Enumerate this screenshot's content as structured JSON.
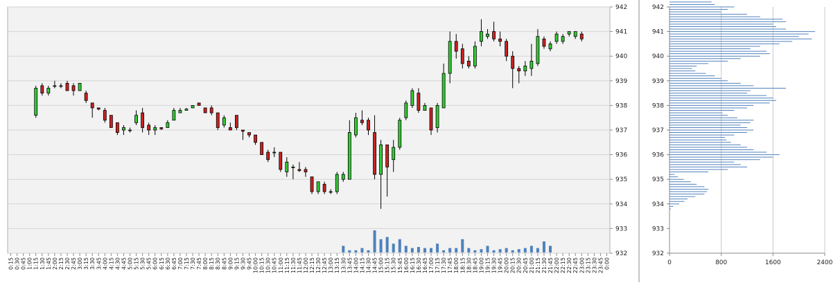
{
  "chart_data": [
    {
      "type": "candlestick",
      "title": "",
      "x_categories": [
        "0:15",
        "0:30",
        "0:45",
        "1:00",
        "1:15",
        "1:30",
        "1:45",
        "2:00",
        "2:15",
        "2:30",
        "2:45",
        "3:00",
        "3:15",
        "3:30",
        "3:45",
        "4:00",
        "4:15",
        "4:30",
        "4:45",
        "5:00",
        "5:15",
        "5:30",
        "5:45",
        "6:00",
        "6:15",
        "6:30",
        "6:45",
        "7:00",
        "7:15",
        "7:30",
        "7:45",
        "8:00",
        "8:15",
        "8:30",
        "8:45",
        "9:00",
        "9:15",
        "9:30",
        "9:45",
        "10:00",
        "10:15",
        "10:30",
        "10:45",
        "11:00",
        "11:15",
        "11:30",
        "11:45",
        "12:00",
        "12:15",
        "12:30",
        "12:45",
        "13:00",
        "13:15",
        "13:30",
        "13:45",
        "14:00",
        "14:15",
        "14:30",
        "14:45",
        "15:00",
        "15:15",
        "15:30",
        "15:45",
        "16:00",
        "16:15",
        "16:30",
        "16:45",
        "17:00",
        "17:15",
        "17:30",
        "17:45",
        "18:00",
        "18:15",
        "18:30",
        "18:45",
        "19:00",
        "19:15",
        "19:30",
        "19:45",
        "20:00",
        "20:15",
        "20:30",
        "20:45",
        "21:00",
        "21:15",
        "21:30",
        "21:45",
        "22:00",
        "22:15",
        "22:30",
        "22:45",
        "23:00",
        "23:15",
        "23:30",
        "23:45",
        "0:00"
      ],
      "y_ticks": [
        "942",
        "941",
        "940",
        "939",
        "938",
        "937",
        "936",
        "935",
        "934",
        "933",
        "932"
      ],
      "ylim": [
        932,
        942
      ],
      "bull_color": "#33cc33",
      "bear_color": "#cc2222",
      "volume_color": "#4f81bd",
      "candles": [
        {
          "x": "1:15",
          "o": 937.6,
          "h": 938.8,
          "l": 937.5,
          "c": 938.7
        },
        {
          "x": "1:30",
          "o": 938.8,
          "h": 938.9,
          "l": 938.4,
          "c": 938.5
        },
        {
          "x": "1:45",
          "o": 938.5,
          "h": 938.8,
          "l": 938.4,
          "c": 938.7
        },
        {
          "x": "2:00",
          "o": 938.8,
          "h": 939.0,
          "l": 938.7,
          "c": 938.8
        },
        {
          "x": "2:15",
          "o": 938.8,
          "h": 938.9,
          "l": 938.7,
          "c": 938.8
        },
        {
          "x": "2:30",
          "o": 938.9,
          "h": 939.0,
          "l": 938.6,
          "c": 938.6
        },
        {
          "x": "2:45",
          "o": 938.8,
          "h": 938.9,
          "l": 938.4,
          "c": 938.6
        },
        {
          "x": "3:00",
          "o": 938.6,
          "h": 938.9,
          "l": 938.6,
          "c": 938.9
        },
        {
          "x": "3:15",
          "o": 938.5,
          "h": 938.6,
          "l": 938.1,
          "c": 938.2
        },
        {
          "x": "3:30",
          "o": 938.1,
          "h": 938.1,
          "l": 937.5,
          "c": 937.9
        },
        {
          "x": "3:45",
          "o": 937.9,
          "h": 937.9,
          "l": 937.8,
          "c": 937.85
        },
        {
          "x": "4:00",
          "o": 937.8,
          "h": 937.9,
          "l": 937.3,
          "c": 937.4
        },
        {
          "x": "4:15",
          "o": 937.6,
          "h": 937.6,
          "l": 937.1,
          "c": 937.1
        },
        {
          "x": "4:30",
          "o": 937.3,
          "h": 937.3,
          "l": 936.8,
          "c": 936.9
        },
        {
          "x": "4:45",
          "o": 937.0,
          "h": 937.2,
          "l": 936.8,
          "c": 937.1
        },
        {
          "x": "5:00",
          "o": 937.0,
          "h": 937.1,
          "l": 936.9,
          "c": 937.0
        },
        {
          "x": "5:15",
          "o": 937.3,
          "h": 937.8,
          "l": 937.2,
          "c": 937.6
        },
        {
          "x": "5:30",
          "o": 937.7,
          "h": 937.9,
          "l": 936.9,
          "c": 937.1
        },
        {
          "x": "5:45",
          "o": 937.2,
          "h": 937.3,
          "l": 936.8,
          "c": 937.0
        },
        {
          "x": "6:00",
          "o": 937.0,
          "h": 937.2,
          "l": 936.8,
          "c": 937.1
        },
        {
          "x": "6:15",
          "o": 937.1,
          "h": 937.1,
          "l": 937.0,
          "c": 937.05
        },
        {
          "x": "6:30",
          "o": 937.1,
          "h": 937.4,
          "l": 937.1,
          "c": 937.3
        },
        {
          "x": "6:45",
          "o": 937.4,
          "h": 937.9,
          "l": 937.4,
          "c": 937.8
        },
        {
          "x": "7:00",
          "o": 937.7,
          "h": 937.9,
          "l": 937.7,
          "c": 937.8
        },
        {
          "x": "7:15",
          "o": 937.8,
          "h": 937.9,
          "l": 937.8,
          "c": 937.85
        },
        {
          "x": "7:30",
          "o": 937.9,
          "h": 938.0,
          "l": 937.9,
          "c": 938.0
        },
        {
          "x": "7:45",
          "o": 938.1,
          "h": 938.1,
          "l": 938.0,
          "c": 938.0
        },
        {
          "x": "8:00",
          "o": 937.9,
          "h": 937.9,
          "l": 937.7,
          "c": 937.7
        },
        {
          "x": "8:15",
          "o": 937.9,
          "h": 938.0,
          "l": 937.6,
          "c": 937.7
        },
        {
          "x": "8:30",
          "o": 937.7,
          "h": 937.7,
          "l": 937.0,
          "c": 937.1
        },
        {
          "x": "8:45",
          "o": 937.2,
          "h": 937.6,
          "l": 937.1,
          "c": 937.5
        },
        {
          "x": "9:00",
          "o": 937.1,
          "h": 937.3,
          "l": 937.0,
          "c": 937.0
        },
        {
          "x": "9:15",
          "o": 937.6,
          "h": 937.6,
          "l": 937.0,
          "c": 937.1
        },
        {
          "x": "9:30",
          "o": 937.0,
          "h": 937.0,
          "l": 936.6,
          "c": 936.95
        },
        {
          "x": "9:45",
          "o": 936.9,
          "h": 936.9,
          "l": 936.7,
          "c": 936.8
        },
        {
          "x": "10:00",
          "o": 936.8,
          "h": 936.8,
          "l": 936.4,
          "c": 936.5
        },
        {
          "x": "10:15",
          "o": 936.5,
          "h": 936.5,
          "l": 936.0,
          "c": 936.0
        },
        {
          "x": "10:30",
          "o": 936.1,
          "h": 936.2,
          "l": 935.7,
          "c": 935.8
        },
        {
          "x": "10:45",
          "o": 936.1,
          "h": 936.3,
          "l": 935.9,
          "c": 936.1
        },
        {
          "x": "11:00",
          "o": 936.1,
          "h": 936.1,
          "l": 935.3,
          "c": 935.4
        },
        {
          "x": "11:15",
          "o": 935.3,
          "h": 935.9,
          "l": 935.1,
          "c": 935.7
        },
        {
          "x": "11:30",
          "o": 935.5,
          "h": 935.6,
          "l": 935.0,
          "c": 935.5
        },
        {
          "x": "11:45",
          "o": 935.4,
          "h": 935.7,
          "l": 935.3,
          "c": 935.35
        },
        {
          "x": "12:00",
          "o": 935.4,
          "h": 935.5,
          "l": 935.1,
          "c": 935.3
        },
        {
          "x": "12:15",
          "o": 935.1,
          "h": 935.1,
          "l": 934.4,
          "c": 934.5
        },
        {
          "x": "12:30",
          "o": 934.5,
          "h": 934.9,
          "l": 934.4,
          "c": 934.9
        },
        {
          "x": "12:45",
          "o": 934.8,
          "h": 934.9,
          "l": 934.4,
          "c": 934.5
        },
        {
          "x": "13:00",
          "o": 934.5,
          "h": 934.6,
          "l": 934.4,
          "c": 934.5
        },
        {
          "x": "13:15",
          "o": 934.5,
          "h": 935.3,
          "l": 934.4,
          "c": 935.2
        },
        {
          "x": "13:30",
          "o": 935.0,
          "h": 935.3,
          "l": 934.9,
          "c": 935.2
        },
        {
          "x": "13:45",
          "o": 935.0,
          "h": 937.4,
          "l": 935.0,
          "c": 936.9
        },
        {
          "x": "14:00",
          "o": 936.8,
          "h": 937.7,
          "l": 936.7,
          "c": 937.5
        },
        {
          "x": "14:15",
          "o": 937.4,
          "h": 937.8,
          "l": 937.2,
          "c": 937.3
        },
        {
          "x": "14:30",
          "o": 937.4,
          "h": 937.5,
          "l": 936.8,
          "c": 937.0
        },
        {
          "x": "14:45",
          "o": 936.9,
          "h": 937.6,
          "l": 935.0,
          "c": 935.2
        },
        {
          "x": "15:00",
          "o": 935.2,
          "h": 936.6,
          "l": 933.8,
          "c": 936.4
        },
        {
          "x": "15:15",
          "o": 936.4,
          "h": 936.4,
          "l": 934.3,
          "c": 935.5
        },
        {
          "x": "15:30",
          "o": 935.8,
          "h": 936.6,
          "l": 935.3,
          "c": 936.3
        },
        {
          "x": "15:45",
          "o": 936.3,
          "h": 937.5,
          "l": 936.2,
          "c": 937.4
        },
        {
          "x": "16:00",
          "o": 937.5,
          "h": 938.2,
          "l": 937.4,
          "c": 938.1
        },
        {
          "x": "16:15",
          "o": 938.0,
          "h": 938.7,
          "l": 937.9,
          "c": 938.6
        },
        {
          "x": "16:30",
          "o": 938.5,
          "h": 938.7,
          "l": 937.7,
          "c": 937.8
        },
        {
          "x": "16:45",
          "o": 937.8,
          "h": 938.1,
          "l": 937.8,
          "c": 938.0
        },
        {
          "x": "17:00",
          "o": 937.9,
          "h": 937.9,
          "l": 936.8,
          "c": 937.0
        },
        {
          "x": "17:15",
          "o": 937.1,
          "h": 938.1,
          "l": 936.9,
          "c": 938.0
        },
        {
          "x": "17:30",
          "o": 937.9,
          "h": 939.7,
          "l": 937.9,
          "c": 939.3
        },
        {
          "x": "17:45",
          "o": 939.3,
          "h": 941.0,
          "l": 938.9,
          "c": 940.6
        },
        {
          "x": "18:00",
          "o": 940.6,
          "h": 940.9,
          "l": 939.9,
          "c": 940.2
        },
        {
          "x": "18:15",
          "o": 940.3,
          "h": 940.5,
          "l": 939.5,
          "c": 939.7
        },
        {
          "x": "18:30",
          "o": 939.8,
          "h": 940.0,
          "l": 939.5,
          "c": 939.6
        },
        {
          "x": "18:45",
          "o": 939.6,
          "h": 940.6,
          "l": 939.5,
          "c": 940.4
        },
        {
          "x": "19:00",
          "o": 940.6,
          "h": 941.5,
          "l": 940.4,
          "c": 941.0
        },
        {
          "x": "19:15",
          "o": 940.8,
          "h": 941.1,
          "l": 940.7,
          "c": 940.9
        },
        {
          "x": "19:30",
          "o": 941.0,
          "h": 941.4,
          "l": 940.6,
          "c": 940.7
        },
        {
          "x": "19:45",
          "o": 940.7,
          "h": 941.0,
          "l": 940.4,
          "c": 940.6
        },
        {
          "x": "20:00",
          "o": 940.6,
          "h": 940.7,
          "l": 939.8,
          "c": 940.0
        },
        {
          "x": "20:15",
          "o": 940.0,
          "h": 940.2,
          "l": 938.7,
          "c": 939.5
        },
        {
          "x": "20:30",
          "o": 939.5,
          "h": 939.6,
          "l": 938.9,
          "c": 939.4
        },
        {
          "x": "20:45",
          "o": 939.4,
          "h": 939.8,
          "l": 939.2,
          "c": 939.6
        },
        {
          "x": "21:00",
          "o": 939.5,
          "h": 940.5,
          "l": 939.2,
          "c": 939.8
        },
        {
          "x": "21:15",
          "o": 939.7,
          "h": 941.1,
          "l": 939.6,
          "c": 940.8
        },
        {
          "x": "21:30",
          "o": 940.7,
          "h": 940.8,
          "l": 940.3,
          "c": 940.4
        },
        {
          "x": "21:45",
          "o": 940.3,
          "h": 940.6,
          "l": 940.2,
          "c": 940.5
        },
        {
          "x": "22:00",
          "o": 940.6,
          "h": 941.0,
          "l": 940.5,
          "c": 940.9
        },
        {
          "x": "22:15",
          "o": 940.6,
          "h": 940.9,
          "l": 940.5,
          "c": 940.8
        },
        {
          "x": "22:30",
          "o": 940.9,
          "h": 941.0,
          "l": 940.8,
          "c": 941.0
        },
        {
          "x": "22:45",
          "o": 940.8,
          "h": 941.0,
          "l": 940.7,
          "c": 941.0
        },
        {
          "x": "23:00",
          "o": 940.9,
          "h": 941.0,
          "l": 940.6,
          "c": 940.7
        }
      ],
      "volume": [
        {
          "x": "13:30",
          "v": 0.3
        },
        {
          "x": "13:45",
          "v": 0.1
        },
        {
          "x": "14:00",
          "v": 0.1
        },
        {
          "x": "14:15",
          "v": 0.2
        },
        {
          "x": "14:30",
          "v": 0.1
        },
        {
          "x": "14:45",
          "v": 1.0
        },
        {
          "x": "15:00",
          "v": 0.6
        },
        {
          "x": "15:15",
          "v": 0.7
        },
        {
          "x": "15:30",
          "v": 0.4
        },
        {
          "x": "15:45",
          "v": 0.6
        },
        {
          "x": "16:00",
          "v": 0.3
        },
        {
          "x": "16:15",
          "v": 0.2
        },
        {
          "x": "16:30",
          "v": 0.25
        },
        {
          "x": "16:45",
          "v": 0.2
        },
        {
          "x": "17:00",
          "v": 0.2
        },
        {
          "x": "17:15",
          "v": 0.4
        },
        {
          "x": "17:30",
          "v": 0.1
        },
        {
          "x": "17:45",
          "v": 0.2
        },
        {
          "x": "18:00",
          "v": 0.2
        },
        {
          "x": "18:15",
          "v": 0.6
        },
        {
          "x": "18:30",
          "v": 0.2
        },
        {
          "x": "18:45",
          "v": 0.1
        },
        {
          "x": "19:00",
          "v": 0.15
        },
        {
          "x": "19:15",
          "v": 0.3
        },
        {
          "x": "19:30",
          "v": 0.1
        },
        {
          "x": "19:45",
          "v": 0.15
        },
        {
          "x": "20:00",
          "v": 0.2
        },
        {
          "x": "20:15",
          "v": 0.1
        },
        {
          "x": "20:30",
          "v": 0.15
        },
        {
          "x": "20:45",
          "v": 0.2
        },
        {
          "x": "21:00",
          "v": 0.3
        },
        {
          "x": "21:15",
          "v": 0.2
        },
        {
          "x": "21:30",
          "v": 0.5
        },
        {
          "x": "21:45",
          "v": 0.3
        }
      ]
    },
    {
      "type": "bar",
      "orientation": "horizontal",
      "title": "",
      "x_ticks": [
        "0",
        "800",
        "1600",
        "2400"
      ],
      "xlim": [
        0,
        2400
      ],
      "y_ticks": [
        "942",
        "941",
        "940",
        "939",
        "938",
        "937",
        "936",
        "935",
        "934",
        "933",
        "932"
      ],
      "ylim": [
        932,
        942
      ],
      "bar_color": "#4f81bd",
      "price_step": 0.1,
      "price_start": 933.8,
      "values": [
        20,
        60,
        150,
        230,
        280,
        400,
        540,
        580,
        600,
        540,
        420,
        330,
        220,
        130,
        80,
        600,
        900,
        1200,
        1100,
        1000,
        1400,
        1600,
        1700,
        1500,
        1300,
        1200,
        1100,
        950,
        880,
        860,
        1000,
        1200,
        1300,
        1200,
        1100,
        1250,
        1300,
        1050,
        900,
        820,
        1000,
        1200,
        1300,
        1550,
        1650,
        1600,
        1500,
        1200,
        1250,
        1800,
        1300,
        1100,
        900,
        800,
        700,
        560,
        400,
        350,
        420,
        600,
        900,
        1100,
        1400,
        1550,
        1500,
        1250,
        1400,
        1700,
        1900,
        2200,
        2000,
        2150,
        2250,
        1800,
        1650,
        1600,
        1800,
        1750,
        1400,
        1200,
        800,
        900,
        1000,
        700,
        650,
        600,
        400
      ]
    }
  ]
}
